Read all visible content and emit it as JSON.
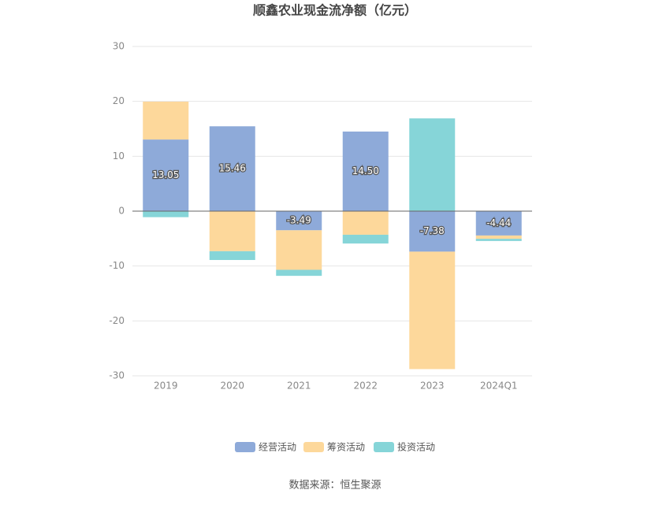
{
  "chart_data": {
    "type": "stacked_bar",
    "title": "顺鑫农业现金流净额（亿元）",
    "categories": [
      "2019",
      "2020",
      "2021",
      "2022",
      "2023",
      "2024Q1"
    ],
    "series": [
      {
        "name": "经营活动",
        "color": "#8eaad9",
        "values": [
          13.05,
          15.46,
          -3.49,
          14.5,
          -7.38,
          -4.44
        ],
        "value_labels": [
          "13.05",
          "15.46",
          "-3.49",
          "14.50",
          "-7.38",
          "-4.44"
        ]
      },
      {
        "name": "筹资活动",
        "color": "#fdd89b",
        "values": [
          6.9,
          -7.3,
          -7.2,
          -4.3,
          -21.4,
          -0.6
        ]
      },
      {
        "name": "投资活动",
        "color": "#86d5d8",
        "values": [
          -1.1,
          -1.6,
          -1.1,
          -1.6,
          16.9,
          -0.4
        ]
      }
    ],
    "ylim": [
      -30,
      30
    ],
    "yticks": [
      -30,
      -20,
      -10,
      0,
      10,
      20,
      30
    ],
    "grid": true,
    "source": "数据来源：恒生聚源"
  }
}
